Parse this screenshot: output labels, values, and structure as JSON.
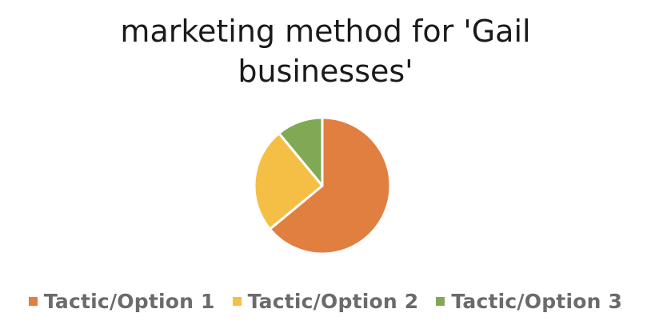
{
  "chart_data": {
    "type": "pie",
    "title_lines": [
      "marketing method for 'Gail",
      "businesses'"
    ],
    "categories": [
      "Tactic/Option 1",
      "Tactic/Option 2",
      "Tactic/Option 3"
    ],
    "values": [
      64,
      25,
      11
    ],
    "colors": [
      "#e07f40",
      "#f5bf45",
      "#80a956"
    ],
    "legend_position": "bottom",
    "start_angle_deg": 0,
    "direction": "clockwise"
  }
}
